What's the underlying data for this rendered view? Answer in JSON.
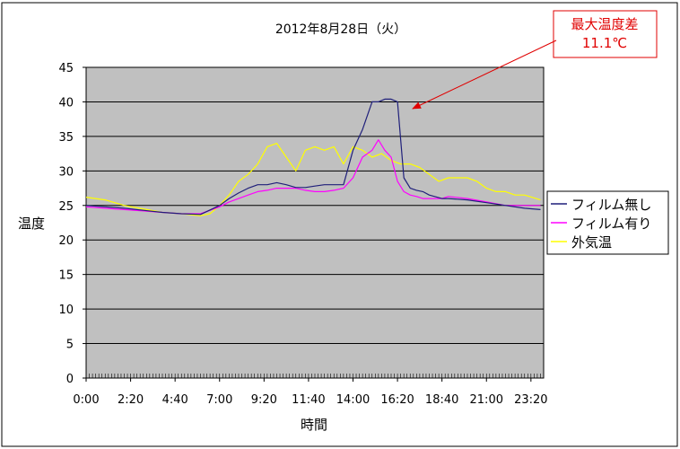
{
  "chart_data": {
    "type": "line",
    "title": "2012年8月28日（火）",
    "xlabel": "時間",
    "ylabel": "温度",
    "ylim": [
      0,
      45
    ],
    "yticks": [
      0,
      5,
      10,
      15,
      20,
      25,
      30,
      35,
      40,
      45
    ],
    "xlim": [
      "0:00",
      "24:00"
    ],
    "xtick_labels": [
      "0:00",
      "2:20",
      "4:40",
      "7:00",
      "9:20",
      "11:40",
      "14:00",
      "16:20",
      "18:40",
      "21:00",
      "23:20"
    ],
    "grid": true,
    "legend_position": "right",
    "annotation": {
      "text_line1": "最大温度差",
      "text_line2": "11.1℃",
      "color": "#e00000"
    },
    "series": [
      {
        "name": "フィルム無し",
        "color": "#1f1f7a",
        "x": [
          "0:00",
          "1:00",
          "2:00",
          "3:00",
          "4:00",
          "5:00",
          "6:00",
          "7:00",
          "7:30",
          "8:00",
          "8:30",
          "9:00",
          "9:30",
          "10:00",
          "10:30",
          "11:00",
          "11:30",
          "12:00",
          "12:30",
          "13:00",
          "13:30",
          "14:00",
          "14:30",
          "15:00",
          "15:20",
          "15:40",
          "16:00",
          "16:20",
          "16:40",
          "17:00",
          "17:20",
          "17:40",
          "18:00",
          "18:40",
          "19:00",
          "20:00",
          "21:00",
          "22:00",
          "23:00",
          "23:50"
        ],
        "y": [
          25.0,
          24.8,
          24.6,
          24.3,
          24.0,
          23.8,
          23.7,
          25.0,
          26.0,
          26.8,
          27.5,
          28.0,
          28.0,
          28.3,
          28.0,
          27.6,
          27.6,
          27.8,
          28.0,
          28.0,
          28.0,
          33.0,
          36.0,
          40.0,
          40.0,
          40.4,
          40.4,
          40.0,
          29.0,
          27.5,
          27.2,
          27.0,
          26.5,
          26.0,
          26.0,
          25.8,
          25.4,
          25.0,
          24.6,
          24.4
        ]
      },
      {
        "name": "フィルム有り",
        "color": "#ff00ff",
        "x": [
          "0:00",
          "1:00",
          "2:00",
          "3:00",
          "4:00",
          "5:00",
          "6:00",
          "7:00",
          "7:30",
          "8:00",
          "8:30",
          "9:00",
          "9:30",
          "10:00",
          "10:30",
          "11:00",
          "11:30",
          "12:00",
          "12:30",
          "13:00",
          "13:30",
          "14:00",
          "14:30",
          "15:00",
          "15:20",
          "15:40",
          "16:00",
          "16:20",
          "16:40",
          "17:00",
          "17:20",
          "17:40",
          "18:00",
          "18:40",
          "19:00",
          "20:00",
          "21:00",
          "22:00",
          "23:00",
          "23:50"
        ],
        "y": [
          24.8,
          24.6,
          24.4,
          24.2,
          24.0,
          23.8,
          23.8,
          24.8,
          25.5,
          26.0,
          26.5,
          27.0,
          27.2,
          27.5,
          27.5,
          27.5,
          27.2,
          27.0,
          27.0,
          27.2,
          27.5,
          29.0,
          32.0,
          33.0,
          34.5,
          33.0,
          32.0,
          28.5,
          27.0,
          26.5,
          26.3,
          26.0,
          26.0,
          26.0,
          26.3,
          26.0,
          25.5,
          25.0,
          25.0,
          25.0
        ]
      },
      {
        "name": "外気温",
        "color": "#ffff00",
        "x": [
          "0:00",
          "1:00",
          "2:00",
          "3:00",
          "4:00",
          "5:00",
          "6:00",
          "6:30",
          "7:00",
          "7:30",
          "8:00",
          "8:30",
          "9:00",
          "9:30",
          "10:00",
          "10:30",
          "11:00",
          "11:30",
          "12:00",
          "12:30",
          "13:00",
          "13:30",
          "14:00",
          "14:30",
          "15:00",
          "15:30",
          "16:00",
          "16:30",
          "17:00",
          "17:30",
          "18:00",
          "18:30",
          "19:00",
          "19:30",
          "20:00",
          "20:30",
          "21:00",
          "21:30",
          "22:00",
          "22:30",
          "23:00",
          "23:50"
        ],
        "y": [
          26.2,
          25.8,
          25.0,
          24.5,
          24.0,
          23.8,
          23.5,
          23.8,
          25.0,
          26.5,
          28.5,
          29.5,
          31.0,
          33.5,
          34.0,
          32.0,
          30.0,
          33.0,
          33.5,
          33.0,
          33.5,
          31.0,
          33.5,
          33.0,
          32.0,
          32.5,
          31.5,
          31.0,
          31.0,
          30.5,
          29.5,
          28.5,
          29.0,
          29.0,
          29.0,
          28.5,
          27.5,
          27.0,
          27.0,
          26.5,
          26.5,
          25.8
        ]
      }
    ]
  }
}
